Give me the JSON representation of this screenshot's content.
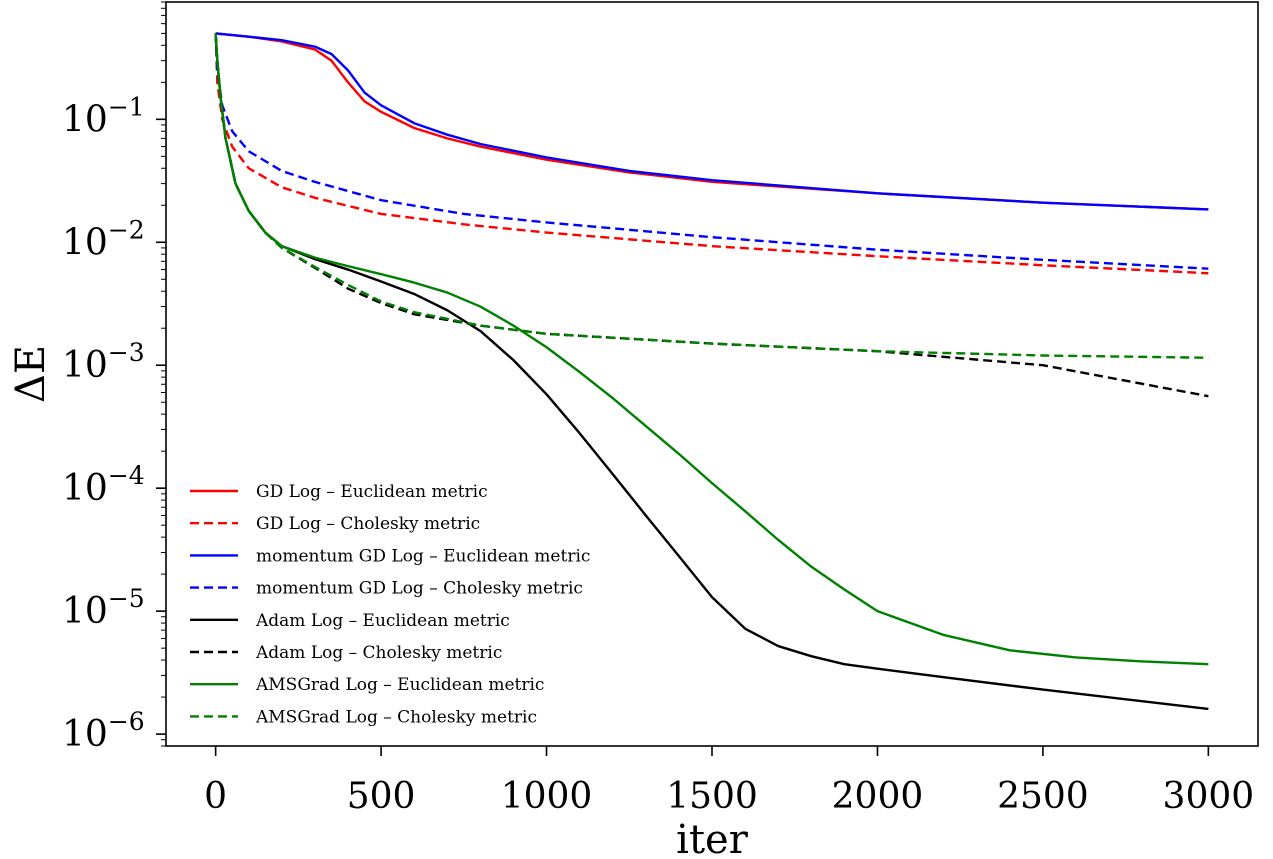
{
  "chart_data": {
    "type": "line",
    "title": "",
    "xlabel": "iter",
    "ylabel": "ΔE",
    "xlim": [
      -150,
      3150
    ],
    "ylim": [
      8e-07,
      0.9
    ],
    "yscale": "log",
    "x_ticks": [
      0,
      500,
      1000,
      1500,
      2000,
      2500,
      3000
    ],
    "y_ticks": [
      {
        "value": 0.1,
        "base": "10",
        "exp": "−1"
      },
      {
        "value": 0.01,
        "base": "10",
        "exp": "−2"
      },
      {
        "value": 0.001,
        "base": "10",
        "exp": "−3"
      },
      {
        "value": 0.0001,
        "base": "10",
        "exp": "−4"
      },
      {
        "value": 1e-05,
        "base": "10",
        "exp": "−5"
      },
      {
        "value": 1e-06,
        "base": "10",
        "exp": "−6"
      }
    ],
    "grid": false,
    "legend_position": "lower-left",
    "series": [
      {
        "name": "GD Log – Euclidean metric",
        "color": "#ff0000",
        "style": "solid",
        "x": [
          0,
          100,
          200,
          300,
          350,
          400,
          450,
          500,
          600,
          700,
          800,
          1000,
          1250,
          1500,
          2000,
          2500,
          3000
        ],
        "y": [
          0.5,
          0.47,
          0.43,
          0.37,
          0.3,
          0.2,
          0.14,
          0.115,
          0.085,
          0.07,
          0.06,
          0.047,
          0.037,
          0.031,
          0.025,
          0.021,
          0.0185
        ]
      },
      {
        "name": "GD Log – Cholesky metric",
        "color": "#ff0000",
        "style": "dashed",
        "x": [
          0,
          5,
          20,
          50,
          100,
          200,
          300,
          500,
          750,
          1000,
          1500,
          2000,
          2500,
          3000
        ],
        "y": [
          0.5,
          0.2,
          0.1,
          0.06,
          0.04,
          0.028,
          0.023,
          0.017,
          0.014,
          0.012,
          0.0093,
          0.0077,
          0.0065,
          0.0056
        ]
      },
      {
        "name": "momentum GD Log – Euclidean metric",
        "color": "#0000ff",
        "style": "solid",
        "x": [
          0,
          100,
          200,
          300,
          350,
          400,
          450,
          500,
          600,
          700,
          800,
          1000,
          1250,
          1500,
          2000,
          2500,
          3000
        ],
        "y": [
          0.5,
          0.47,
          0.44,
          0.39,
          0.34,
          0.25,
          0.165,
          0.13,
          0.093,
          0.075,
          0.063,
          0.049,
          0.038,
          0.032,
          0.025,
          0.021,
          0.0185
        ]
      },
      {
        "name": "momentum GD Log – Cholesky metric",
        "color": "#0000ff",
        "style": "dashed",
        "x": [
          0,
          5,
          20,
          50,
          100,
          200,
          300,
          500,
          750,
          1000,
          1500,
          2000,
          2500,
          3000
        ],
        "y": [
          0.5,
          0.25,
          0.13,
          0.08,
          0.055,
          0.038,
          0.031,
          0.022,
          0.017,
          0.0145,
          0.011,
          0.0087,
          0.0072,
          0.0061
        ]
      },
      {
        "name": "Adam Log – Euclidean metric",
        "color": "#000000",
        "style": "solid",
        "x": [
          0,
          5,
          15,
          30,
          60,
          100,
          150,
          200,
          300,
          400,
          500,
          600,
          700,
          800,
          900,
          1000,
          1100,
          1200,
          1300,
          1400,
          1500,
          1600,
          1700,
          1800,
          1900,
          2000,
          2200,
          2500,
          3000
        ],
        "y": [
          0.5,
          0.3,
          0.15,
          0.07,
          0.03,
          0.018,
          0.012,
          0.0093,
          0.0073,
          0.006,
          0.0048,
          0.0038,
          0.0028,
          0.0019,
          0.0011,
          0.00058,
          0.00028,
          0.00013,
          6e-05,
          2.8e-05,
          1.3e-05,
          7.2e-06,
          5.2e-06,
          4.3e-06,
          3.7e-06,
          3.4e-06,
          2.9e-06,
          2.3e-06,
          1.6e-06
        ]
      },
      {
        "name": "Adam Log – Cholesky metric",
        "color": "#000000",
        "style": "dashed",
        "x": [
          0,
          5,
          15,
          30,
          60,
          100,
          150,
          200,
          300,
          400,
          500,
          600,
          800,
          1000,
          1500,
          2000,
          2500,
          3000
        ],
        "y": [
          0.5,
          0.3,
          0.15,
          0.07,
          0.03,
          0.018,
          0.012,
          0.009,
          0.0062,
          0.0042,
          0.0032,
          0.0026,
          0.0021,
          0.0018,
          0.0015,
          0.0013,
          0.001,
          0.00056
        ]
      },
      {
        "name": "AMSGrad Log – Euclidean metric",
        "color": "#008000",
        "style": "solid",
        "x": [
          0,
          5,
          15,
          30,
          60,
          100,
          150,
          200,
          300,
          400,
          500,
          600,
          700,
          800,
          900,
          1000,
          1100,
          1200,
          1300,
          1400,
          1500,
          1600,
          1700,
          1800,
          1900,
          2000,
          2200,
          2400,
          2600,
          2800,
          3000
        ],
        "y": [
          0.5,
          0.3,
          0.15,
          0.07,
          0.03,
          0.018,
          0.012,
          0.0093,
          0.0075,
          0.0064,
          0.0055,
          0.0047,
          0.0039,
          0.003,
          0.0021,
          0.0014,
          0.00088,
          0.00054,
          0.00032,
          0.00019,
          0.00011,
          6.5e-05,
          3.8e-05,
          2.3e-05,
          1.5e-05,
          1e-05,
          6.4e-06,
          4.8e-06,
          4.2e-06,
          3.9e-06,
          3.7e-06
        ]
      },
      {
        "name": "AMSGrad Log – Cholesky metric",
        "color": "#008000",
        "style": "dashed",
        "x": [
          0,
          5,
          15,
          30,
          60,
          100,
          150,
          200,
          300,
          400,
          500,
          600,
          800,
          1000,
          1500,
          2000,
          2500,
          3000
        ],
        "y": [
          0.5,
          0.3,
          0.15,
          0.07,
          0.03,
          0.018,
          0.012,
          0.009,
          0.0063,
          0.0045,
          0.0033,
          0.0027,
          0.0021,
          0.0018,
          0.0015,
          0.0013,
          0.0012,
          0.00115
        ]
      }
    ]
  }
}
